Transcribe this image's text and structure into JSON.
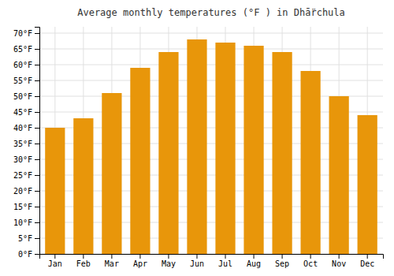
{
  "chart_data": {
    "type": "bar",
    "title": "Average monthly temperatures (°F ) in Dhā̈rchula",
    "categories": [
      "Jan",
      "Feb",
      "Mar",
      "Apr",
      "May",
      "Jun",
      "Jul",
      "Aug",
      "Sep",
      "Oct",
      "Nov",
      "Dec"
    ],
    "values": [
      40,
      43,
      51,
      59,
      64,
      68,
      67,
      66,
      64,
      58,
      50,
      44
    ],
    "color": "#E8960A",
    "ylim": [
      0,
      72
    ],
    "yticks": [
      {
        "value": 0,
        "label": "0°F"
      },
      {
        "value": 5,
        "label": "5°F"
      },
      {
        "value": 10,
        "label": "10°F"
      },
      {
        "value": 15,
        "label": "15°F"
      },
      {
        "value": 20,
        "label": "20°F"
      },
      {
        "value": 25,
        "label": "25°F"
      },
      {
        "value": 30,
        "label": "30°F"
      },
      {
        "value": 35,
        "label": "35°F"
      },
      {
        "value": 40,
        "label": "40°F"
      },
      {
        "value": 45,
        "label": "45°F"
      },
      {
        "value": 50,
        "label": "50°F"
      },
      {
        "value": 55,
        "label": "55°F"
      },
      {
        "value": 60,
        "label": "60°F"
      },
      {
        "value": 65,
        "label": "65°F"
      },
      {
        "value": 70,
        "label": "70°F"
      }
    ],
    "grid": true
  }
}
